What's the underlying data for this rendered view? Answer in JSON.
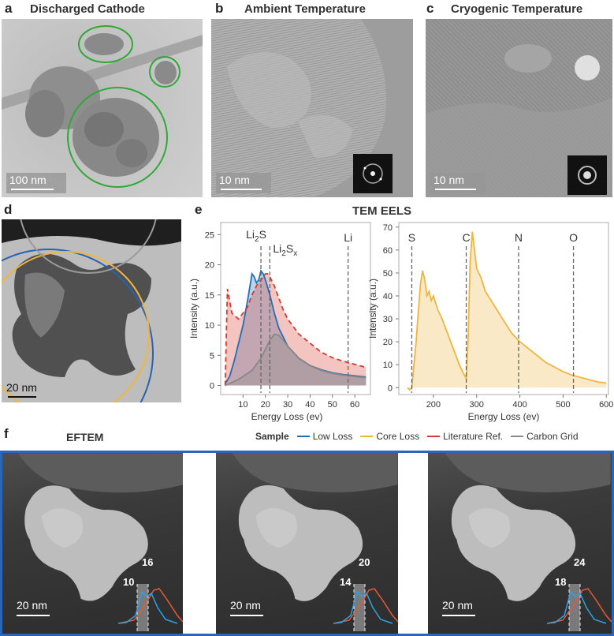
{
  "panels": {
    "a": {
      "label": "a",
      "title": "Discharged Cathode",
      "scale": "100 nm"
    },
    "b": {
      "label": "b",
      "title": "Ambient Temperature",
      "scale": "10 nm"
    },
    "c": {
      "label": "c",
      "title": "Cryogenic Temperature",
      "scale": "10 nm"
    },
    "d": {
      "label": "d",
      "scale": "20 nm"
    },
    "e": {
      "label": "e",
      "title": "TEM EELS"
    },
    "f": {
      "label": "f",
      "title": "EFTEM",
      "scale": "20 nm"
    }
  },
  "legend": {
    "title": "Sample",
    "items": [
      {
        "name": "Low Loss",
        "color": "#1f6fb8"
      },
      {
        "name": "Core Loss",
        "color": "#f0b541"
      },
      {
        "name": "Literature Ref.",
        "color": "#d73a2f"
      },
      {
        "name": "Carbon Grid",
        "color": "#888888"
      }
    ]
  },
  "eftem_windows": [
    {
      "low": "10",
      "high": "16"
    },
    {
      "low": "14",
      "high": "20"
    },
    {
      "low": "18",
      "high": "24"
    }
  ],
  "chart_data": [
    {
      "type": "line",
      "xlabel": "Energy Loss (ev)",
      "ylabel": "Intensity (a.u.)",
      "xlim": [
        0,
        67
      ],
      "ylim": [
        -1.5,
        27
      ],
      "xticks": [
        10,
        20,
        30,
        40,
        50,
        60
      ],
      "yticks": [
        0,
        5,
        10,
        15,
        20,
        25
      ],
      "annotations": [
        {
          "text": "Li2S",
          "base": "Li",
          "sub": "2",
          "tail": "S",
          "tail_sub": "",
          "x": 18
        },
        {
          "text": "Li2Sx",
          "base": "Li",
          "sub": "2",
          "tail": "S",
          "tail_sub": "x",
          "x": 22
        },
        {
          "text": "Li",
          "base": "Li",
          "sub": "",
          "tail": "",
          "tail_sub": "",
          "x": 57
        }
      ],
      "series": [
        {
          "name": "Low Loss",
          "color": "#1f6fb8",
          "x": [
            2,
            4,
            6,
            8,
            10,
            12,
            14,
            15,
            16,
            17,
            18,
            19,
            20,
            22,
            24,
            26,
            28,
            30,
            35,
            40,
            45,
            50,
            55,
            60,
            65
          ],
          "y": [
            0.3,
            1.5,
            4,
            7,
            10,
            14,
            18.5,
            18,
            17,
            17.5,
            19,
            18.5,
            17.5,
            15,
            12,
            9.5,
            8,
            6.5,
            4.5,
            3.3,
            2.6,
            2.1,
            1.8,
            1.6,
            1.4
          ]
        },
        {
          "name": "Literature Ref.",
          "color": "#d73a2f",
          "x": [
            2,
            3,
            5,
            8,
            10,
            12,
            14,
            16,
            18,
            20,
            21,
            22,
            24,
            26,
            28,
            30,
            35,
            40,
            45,
            50,
            55,
            60,
            65
          ],
          "y": [
            0,
            16,
            12,
            11,
            12,
            13,
            15,
            16.5,
            17.5,
            18.5,
            18.5,
            18,
            16.5,
            14.5,
            12.5,
            11,
            8.5,
            7,
            5.5,
            4.6,
            4,
            3.5,
            3
          ]
        },
        {
          "name": "Carbon Grid",
          "color": "#888888",
          "x": [
            2,
            5,
            8,
            10,
            12,
            14,
            16,
            18,
            20,
            22,
            24,
            26,
            28,
            30,
            35,
            40,
            45,
            50,
            55,
            60,
            65
          ],
          "y": [
            0,
            0.5,
            1,
            1.5,
            2,
            2.5,
            3.5,
            4.5,
            6,
            7.5,
            8.5,
            8.3,
            7.5,
            6.5,
            4.5,
            3.3,
            2.5,
            2,
            1.7,
            1.5,
            1.3
          ]
        }
      ]
    },
    {
      "type": "line",
      "xlabel": "Energy Loss (ev)",
      "ylabel": "Intensity (a.u.)",
      "xlim": [
        120,
        605
      ],
      "ylim": [
        -3,
        72
      ],
      "xticks": [
        200,
        300,
        400,
        500,
        600
      ],
      "yticks": [
        0,
        10,
        20,
        30,
        40,
        50,
        60,
        70
      ],
      "annotations": [
        {
          "text": "S",
          "x": 150
        },
        {
          "text": "C",
          "x": 276
        },
        {
          "text": "N",
          "x": 397
        },
        {
          "text": "O",
          "x": 524
        }
      ],
      "series": [
        {
          "name": "Core Loss",
          "color": "#f0b541",
          "x": [
            140,
            145,
            150,
            155,
            160,
            165,
            170,
            175,
            180,
            185,
            190,
            195,
            200,
            210,
            220,
            230,
            240,
            250,
            260,
            270,
            276,
            280,
            285,
            290,
            295,
            300,
            310,
            320,
            340,
            360,
            380,
            400,
            420,
            440,
            460,
            480,
            500,
            520,
            540,
            560,
            580,
            600
          ],
          "y": [
            0,
            -1,
            0,
            10,
            20,
            33,
            45,
            51,
            47,
            40,
            42,
            38,
            40,
            34,
            30,
            25,
            20,
            15,
            10,
            6,
            4,
            20,
            55,
            68,
            60,
            52,
            48,
            42,
            36,
            30,
            24,
            20,
            17,
            14,
            11,
            9,
            7,
            5.5,
            4.5,
            3.5,
            2.5,
            2
          ]
        }
      ]
    }
  ]
}
